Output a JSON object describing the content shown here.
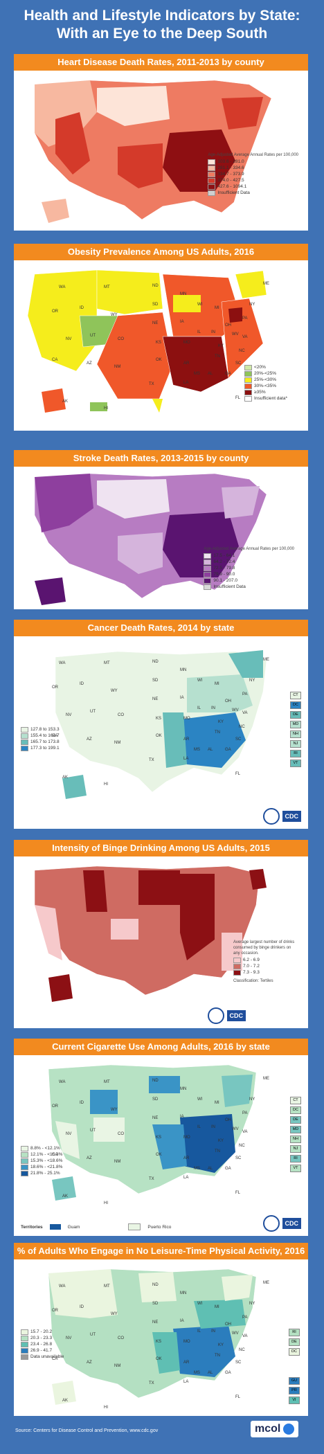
{
  "title": {
    "line1": "Health  and Lifestyle Indicators by State:",
    "line2": "With an Eye to the Deep South"
  },
  "panels": [
    {
      "heading": "Heart Disease Death Rates, 2011-2013 by county",
      "legend_title": "Age-Adjusted Average Annual Rates per 100,000",
      "legend": [
        "103.6 - 281.0",
        "281.1 - 334.6",
        "334.7 - 373.9",
        "374.0 - 427.5",
        "427.6 - 1094.1",
        "Insufficient Data"
      ],
      "colors": [
        "#fde4d8",
        "#f7b8a0",
        "#ee7b62",
        "#d43a2a",
        "#8e0f12",
        "#cfcfcf"
      ]
    },
    {
      "heading": "Obesity Prevalence Among US Adults, 2016",
      "legend": [
        "<20%",
        "20%-<25%",
        "25%-<30%",
        "30%-<35%",
        "≥35%",
        "Insufficient data*"
      ],
      "colors": [
        "#cfe8a6",
        "#8fc45a",
        "#f5ed1c",
        "#f0582a",
        "#8c1010",
        "#ffffff"
      ]
    },
    {
      "heading": "Stroke Death Rates, 2013-2015 by county",
      "legend_title": "Age-Adjusted Average Annual Rates per 100,000",
      "legend": [
        "17.5 - 64.1",
        "64.2 - 72.4",
        "72.5 - 79.8",
        "79.9 - 90.0",
        "90.1 - 207.0",
        "Insufficient Data"
      ],
      "colors": [
        "#efe3f1",
        "#d5b4dc",
        "#b77cc2",
        "#8e3f9e",
        "#5a1470",
        "#d9d9d9"
      ]
    },
    {
      "heading": "Cancer Death Rates, 2014 by state",
      "legend": [
        "127.8 to 153.3",
        "155.4 to 164.7",
        "165.7 to 173.8",
        "177.3 to 199.1"
      ],
      "colors": [
        "#e8f4e4",
        "#b6e0cf",
        "#68bdb9",
        "#2b84c3"
      ],
      "territories": [
        "CT",
        "DC",
        "DE",
        "MD",
        "NH",
        "NJ",
        "RI",
        "VT"
      ],
      "cdc": "CDC"
    },
    {
      "heading": "Intensity of Binge Drinking Among US Adults, 2015",
      "legend_title": "Average largest number of drinks consumed by binge drinkers on any occasion.",
      "legend": [
        "6.2 - 6.9",
        "7.0 - 7.2",
        "7.3 - 9.3"
      ],
      "colors": [
        "#f6c9cb",
        "#cf6b62",
        "#8c1014"
      ],
      "note": "Classification: Tertiles",
      "cdc": "CDC"
    },
    {
      "heading": "Current Cigarette Use Among Adults, 2016 by state",
      "legend": [
        "8.8% - <12.1%",
        "12.1% - <15.3%",
        "15.3% - <18.6%",
        "18.6% - <21.8%",
        "21.8% - 25.1%"
      ],
      "colors": [
        "#e9f5e4",
        "#b7e2c4",
        "#78c6c0",
        "#3a94c6",
        "#17589e"
      ],
      "territories": [
        "CT",
        "DC",
        "DE",
        "MD",
        "NH",
        "NJ",
        "RI",
        "VT"
      ],
      "territories_row": {
        "label": "Territories",
        "items": [
          "Guam",
          "Puerto Rico"
        ]
      },
      "cdc": "CDC"
    },
    {
      "heading": "% of Adults Who Engage in No Leisure-Time Physical Activity, 2016",
      "legend": [
        "15.7 - 20.2",
        "20.3 - 23.3",
        "23.4 - 26.8",
        "26.9 - 41.7",
        "Data unavailable"
      ],
      "colors": [
        "#eaf5df",
        "#b4e0c2",
        "#5fbfb3",
        "#2b7dbd",
        "#9a9a9a"
      ],
      "territories": [
        "RI",
        "DE",
        "DC"
      ],
      "territories2": [
        "GU",
        "PR",
        "VI"
      ]
    }
  ],
  "state_labels": {
    "p1": [],
    "p2": [
      "WA",
      "OR",
      "ID",
      "MT",
      "ND",
      "SD",
      "NE",
      "KS",
      "OK",
      "TX",
      "CO",
      "WY",
      "UT",
      "NV",
      "CA",
      "AZ",
      "NM",
      "MN",
      "IA",
      "MO",
      "AR",
      "LA",
      "WI",
      "IL",
      "MI",
      "IN",
      "OH",
      "KY",
      "TN",
      "MS",
      "AL",
      "GA",
      "FL",
      "SC",
      "NC",
      "VA",
      "WV",
      "PA",
      "NY",
      "ME",
      "AK",
      "HI"
    ],
    "p4": [
      "WA",
      "OR",
      "ID",
      "MT",
      "ND",
      "SD",
      "WY",
      "NE",
      "NV",
      "UT",
      "CO",
      "KS",
      "CA",
      "AZ",
      "NM",
      "OK",
      "TX",
      "MN",
      "WI",
      "IA",
      "IL",
      "MO",
      "AR",
      "LA",
      "MI",
      "IN",
      "OH",
      "KY",
      "TN",
      "MS",
      "AL",
      "GA",
      "FL",
      "SC",
      "NC",
      "VA",
      "WV",
      "PA",
      "NY",
      "ME",
      "AK",
      "HI"
    ],
    "p6": [
      "WA",
      "OR",
      "ID",
      "MT",
      "ND",
      "SD",
      "WY",
      "NE",
      "NV",
      "UT",
      "CO",
      "KS",
      "CA",
      "AZ",
      "NM",
      "OK",
      "TX",
      "MN",
      "WI",
      "IA",
      "IL",
      "MO",
      "AR",
      "LA",
      "MI",
      "IN",
      "OH",
      "KY",
      "TN",
      "MS",
      "AL",
      "GA",
      "FL",
      "SC",
      "NC",
      "VA",
      "WV",
      "PA",
      "NY",
      "ME",
      "AK",
      "HI"
    ],
    "p7": [
      "WA",
      "OR",
      "ID",
      "MT",
      "ND",
      "SD",
      "WY",
      "NE",
      "NV",
      "UT",
      "CO",
      "KS",
      "CA",
      "AZ",
      "NM",
      "OK",
      "TX",
      "MN",
      "WI",
      "IA",
      "IL",
      "MO",
      "AR",
      "LA",
      "MI",
      "IN",
      "OH",
      "KY",
      "TN",
      "MS",
      "AL",
      "GA",
      "FL",
      "SC",
      "NC",
      "VA",
      "WV",
      "PA",
      "NY",
      "ME",
      "AK",
      "HI"
    ]
  },
  "footer": {
    "source": "Source: Centers for Disease Control and Prevention, www.cdc.gov",
    "brand": "mcol"
  }
}
